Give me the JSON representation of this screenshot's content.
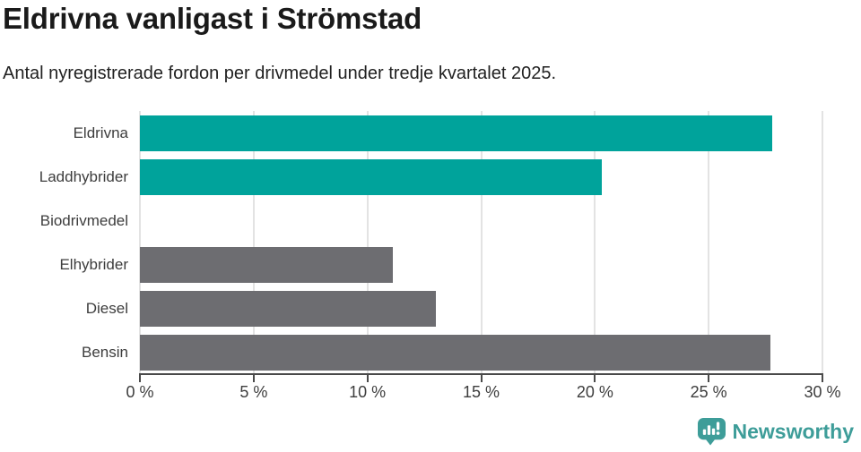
{
  "header": {
    "title": "Eldrivna vanligast i Strömstad",
    "subtitle": "Antal nyregistrerade fordon per drivmedel under tredje kvartalet 2025."
  },
  "chart_data": {
    "type": "bar",
    "orientation": "horizontal",
    "title": "Eldrivna vanligast i Strömstad",
    "subtitle": "Antal nyregistrerade fordon per drivmedel under tredje kvartalet 2025.",
    "categories": [
      "Eldrivna",
      "Laddhybrider",
      "Biodrivmedel",
      "Elhybrider",
      "Diesel",
      "Bensin"
    ],
    "values": [
      27.8,
      20.3,
      0,
      11.1,
      13.0,
      27.7
    ],
    "unit": "%",
    "xlabel": "",
    "ylabel": "",
    "xlim": [
      0,
      30
    ],
    "x_ticks": [
      0,
      5,
      10,
      15,
      20,
      25,
      30
    ],
    "x_tick_labels": [
      "0 %",
      "5 %",
      "10 %",
      "15 %",
      "20 %",
      "25 %",
      "30 %"
    ],
    "bar_colors": [
      "#00a39b",
      "#00a39b",
      "#00a39b",
      "#6d6d71",
      "#6d6d71",
      "#6d6d71"
    ],
    "grid": true,
    "legend": false
  },
  "footer": {
    "brand": "Newsworthy",
    "icon": "newsworthy-speech-bubble-bar-chart-icon"
  },
  "colors": {
    "accent_teal": "#00a39b",
    "neutral_gray": "#6d6d71",
    "gridline": "#e3e3e3",
    "axis": "#4a4a4a",
    "title_text": "#1a1a1a",
    "label_text": "#3d3d3d",
    "brand_teal": "#3e9d99",
    "background": "#ffffff"
  }
}
